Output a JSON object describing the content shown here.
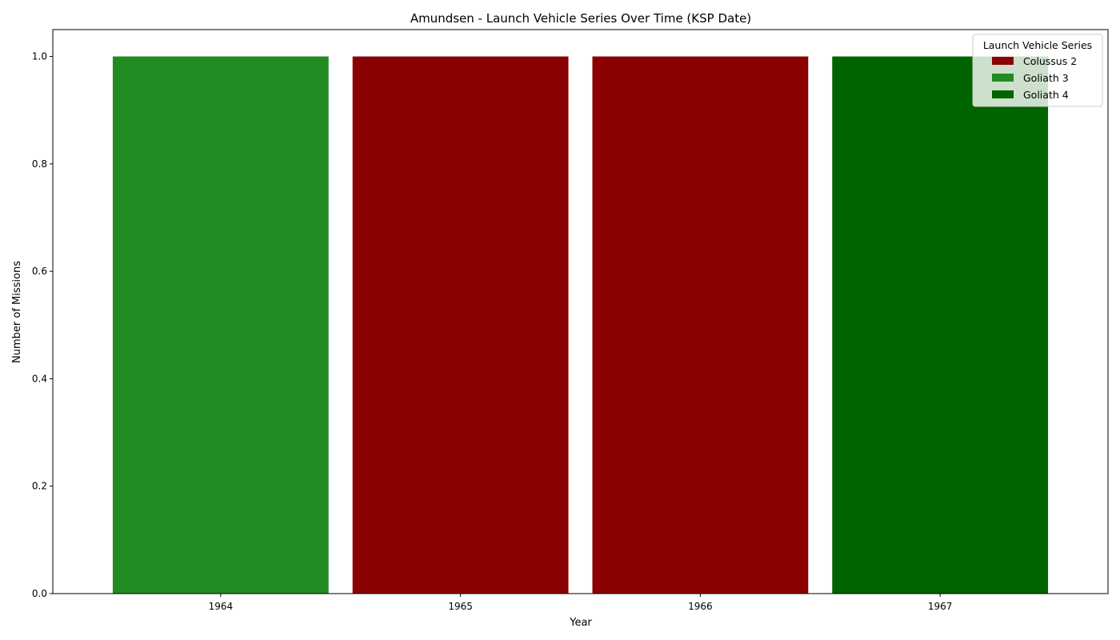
{
  "chart_data": {
    "type": "bar",
    "stacked": true,
    "title": "Amundsen - Launch Vehicle Series Over Time (KSP Date)",
    "xlabel": "Year",
    "ylabel": "Number of Missions",
    "categories": [
      "1964",
      "1965",
      "1966",
      "1967"
    ],
    "series": [
      {
        "name": "Colussus 2",
        "color": "#8b0000",
        "values": [
          0,
          1,
          1,
          0
        ]
      },
      {
        "name": "Goliath 3",
        "color": "#228b22",
        "values": [
          1,
          0,
          0,
          0
        ]
      },
      {
        "name": "Goliath 4",
        "color": "#006400",
        "values": [
          0,
          0,
          0,
          1
        ]
      }
    ],
    "ylim": [
      0,
      1.05
    ],
    "yticks": [
      "0.0",
      "0.2",
      "0.4",
      "0.6",
      "0.8",
      "1.0"
    ],
    "grid": false,
    "legend": {
      "title": "Launch Vehicle Series",
      "placement": "top-right"
    }
  }
}
